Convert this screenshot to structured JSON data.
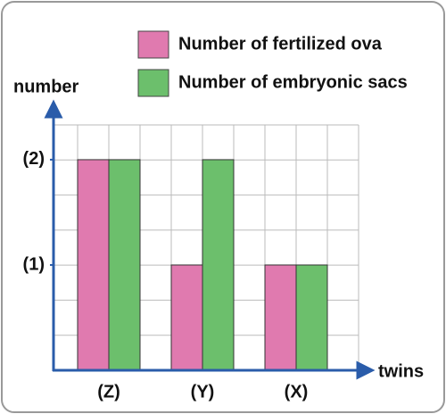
{
  "chart_data": {
    "type": "bar",
    "x_label": "twins",
    "y_label": "number",
    "categories": [
      "(Z)",
      "(Y)",
      "(X)"
    ],
    "series": [
      {
        "name": "Number of fertilized ova",
        "color": "#e07aaf",
        "values": [
          2,
          1,
          1
        ]
      },
      {
        "name": "Number of embryonic sacs",
        "color": "#6cbf6c",
        "values": [
          2,
          2,
          1
        ]
      }
    ],
    "ylim": [
      0,
      2.33
    ],
    "yticks": [
      {
        "value": 1,
        "label": "(1)"
      },
      {
        "value": 2,
        "label": "(2)"
      }
    ],
    "grid": true
  }
}
